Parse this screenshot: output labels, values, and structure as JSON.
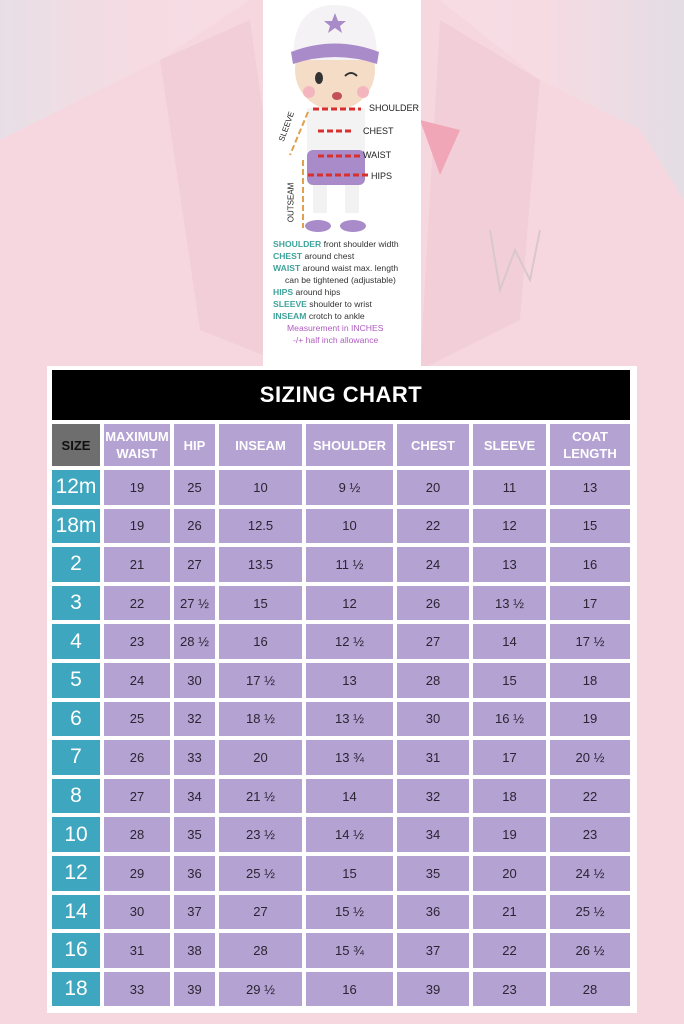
{
  "measurement_guide": {
    "figure_labels": {
      "shoulder": "SHOULDER",
      "chest": "CHEST",
      "waist": "WAIST",
      "hips": "HIPS",
      "sleeve": "SLEEVE",
      "outseam": "OUTSEAM"
    },
    "definitions": [
      {
        "key": "SHOULDER",
        "text": " front shoulder width"
      },
      {
        "key": "CHEST",
        "text": " around chest"
      },
      {
        "key": "WAIST",
        "text": " around waist max. length"
      },
      {
        "key": "",
        "text": "can be tightened (adjustable)"
      },
      {
        "key": "HIPS",
        "text": " around hips"
      },
      {
        "key": "SLEEVE",
        "text": " shoulder to wrist"
      },
      {
        "key": "INSEAM",
        "text": " crotch to ankle"
      }
    ],
    "notes": [
      "Measurement in INCHES",
      "-/+ half inch allowance"
    ]
  },
  "colors": {
    "title_bar": "#000000",
    "cell": "#b3a2d2",
    "size_cell": "#3ea6bf",
    "size_header": "#6e6e6e",
    "key_text": "#3fa39c",
    "note_text": "#b05cc0"
  },
  "chart_data": {
    "type": "table",
    "title": "SIZING CHART",
    "columns": [
      "SIZE",
      "MAXIMUM WAIST",
      "HIP",
      "INSEAM",
      "SHOULDER",
      "CHEST",
      "SLEEVE",
      "COAT LENGTH"
    ],
    "rows": [
      [
        "12m",
        "19",
        "25",
        "10",
        "9 ½",
        "20",
        "11",
        "13"
      ],
      [
        "18m",
        "19",
        "26",
        "12.5",
        "10",
        "22",
        "12",
        "15"
      ],
      [
        "2",
        "21",
        "27",
        "13.5",
        "11 ½",
        "24",
        "13",
        "16"
      ],
      [
        "3",
        "22",
        "27 ½",
        "15",
        "12",
        "26",
        "13 ½",
        "17"
      ],
      [
        "4",
        "23",
        "28 ½",
        "16",
        "12 ½",
        "27",
        "14",
        "17 ½"
      ],
      [
        "5",
        "24",
        "30",
        "17 ½",
        "13",
        "28",
        "15",
        "18"
      ],
      [
        "6",
        "25",
        "32",
        "18 ½",
        "13 ½",
        "30",
        "16 ½",
        "19"
      ],
      [
        "7",
        "26",
        "33",
        "20",
        "13 ¾",
        "31",
        "17",
        "20 ½"
      ],
      [
        "8",
        "27",
        "34",
        "21 ½",
        "14",
        "32",
        "18",
        "22"
      ],
      [
        "10",
        "28",
        "35",
        "23 ½",
        "14 ½",
        "34",
        "19",
        "23"
      ],
      [
        "12",
        "29",
        "36",
        "25 ½",
        "15",
        "35",
        "20",
        "24 ½"
      ],
      [
        "14",
        "30",
        "37",
        "27",
        "15 ½",
        "36",
        "21",
        "25 ½"
      ],
      [
        "16",
        "31",
        "38",
        "28",
        "15 ¾",
        "37",
        "22",
        "26 ½"
      ],
      [
        "18",
        "33",
        "39",
        "29 ½",
        "16",
        "39",
        "23",
        "28"
      ]
    ]
  }
}
